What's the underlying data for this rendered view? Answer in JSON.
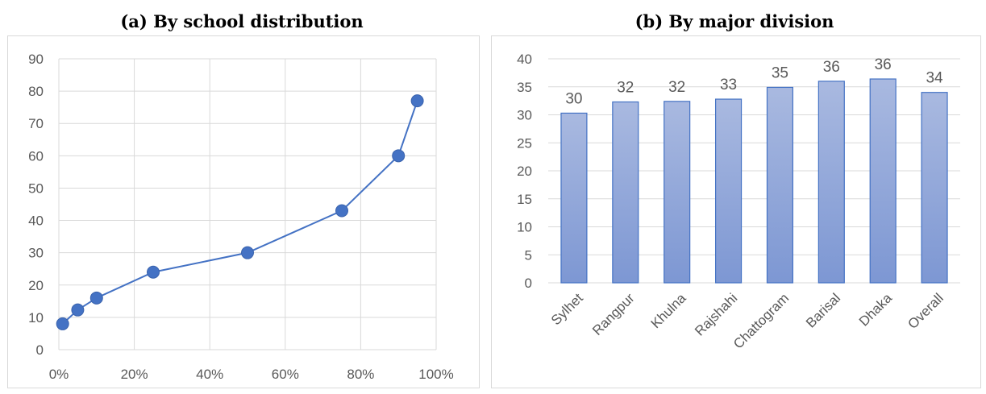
{
  "chart_data": [
    {
      "type": "line",
      "title": "(a)  By school distribution",
      "x": [
        0.01,
        0.05,
        0.1,
        0.25,
        0.5,
        0.75,
        0.9,
        0.95
      ],
      "series": [
        {
          "values": [
            8,
            12.3,
            16,
            24,
            30,
            43,
            60,
            77
          ]
        }
      ],
      "xlim": [
        0,
        1
      ],
      "ylim": [
        0,
        90
      ],
      "xticks": [
        "0%",
        "20%",
        "40%",
        "60%",
        "80%",
        "100%"
      ],
      "yticks": [
        "0",
        "10",
        "20",
        "30",
        "40",
        "50",
        "60",
        "70",
        "80",
        "90"
      ],
      "grid": true,
      "color": "#4472c4"
    },
    {
      "type": "bar",
      "title": "(b)  By major division",
      "categories": [
        "Sylhet",
        "Rangpur",
        "Khulna",
        "Rajshahi",
        "Chattogram",
        "Barisal",
        "Dhaka",
        "Overall"
      ],
      "values": [
        30.3,
        32.3,
        32.4,
        32.8,
        34.9,
        36.0,
        36.4,
        34.0
      ],
      "data_labels": [
        "30",
        "32",
        "32",
        "33",
        "35",
        "36",
        "36",
        "34"
      ],
      "ylim": [
        0,
        40
      ],
      "yticks": [
        "0",
        "5",
        "10",
        "15",
        "20",
        "25",
        "30",
        "35",
        "40"
      ],
      "grid": true,
      "color": "#8ea5d8"
    }
  ]
}
